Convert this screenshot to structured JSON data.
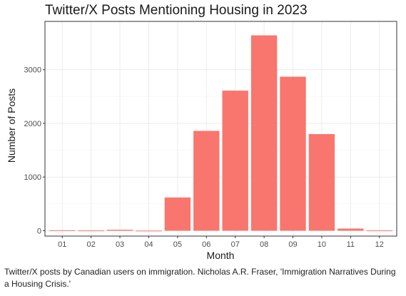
{
  "chart_data": {
    "type": "bar",
    "title": "Twitter/X Posts Mentioning Housing in 2023",
    "xlabel": "Month",
    "ylabel": "Number of Posts",
    "categories": [
      "01",
      "02",
      "03",
      "04",
      "05",
      "06",
      "07",
      "08",
      "09",
      "10",
      "11",
      "12"
    ],
    "values": [
      8,
      5,
      18,
      2,
      620,
      1860,
      2610,
      3640,
      2870,
      1800,
      40,
      6
    ],
    "ylim": [
      -100,
      3900
    ],
    "yticks": [
      0,
      1000,
      2000,
      3000
    ],
    "grid": true,
    "legend": "none",
    "bar_color": "#F8766D",
    "panel_border_color": "#333333",
    "grid_major_color": "#EBEBEB",
    "grid_minor_color": "#F5F5F5"
  },
  "caption": {
    "text": "Twitter/X posts by Canadian users on immigration. Nicholas A.R. Fraser, 'Immigration Narratives During a Housing Crisis.'"
  }
}
